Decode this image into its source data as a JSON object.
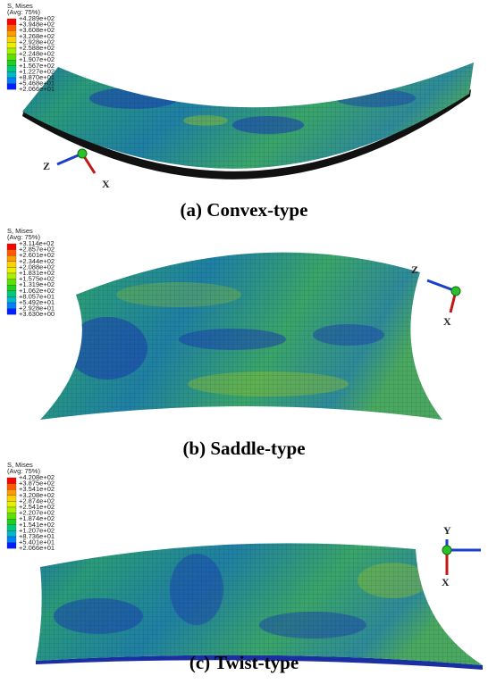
{
  "panels": [
    {
      "legend": {
        "title": "S, Mises",
        "subtitle": "(Avg: 75%)",
        "labels": [
          "+4.289e+02",
          "+3.948e+02",
          "+3.608e+02",
          "+3.268e+02",
          "+2.928e+02",
          "+2.588e+02",
          "+2.248e+02",
          "+1.907e+02",
          "+1.567e+02",
          "+1.227e+02",
          "+8.870e+01",
          "+5.468e+01",
          "+2.066e+01"
        ]
      },
      "axes": [
        "Z",
        "X"
      ],
      "caption": "(a) Convex-type"
    },
    {
      "legend": {
        "title": "S, Mises",
        "subtitle": "(Avg: 75%)",
        "labels": [
          "+3.114e+02",
          "+2.857e+02",
          "+2.601e+02",
          "+2.344e+02",
          "+2.088e+02",
          "+1.831e+02",
          "+1.575e+02",
          "+1.319e+02",
          "+1.062e+02",
          "+8.057e+01",
          "+5.492e+01",
          "+2.928e+01",
          "+3.630e+00"
        ]
      },
      "axes": [
        "Z",
        "X"
      ],
      "caption": "(b) Saddle-type"
    },
    {
      "legend": {
        "title": "S, Mises",
        "subtitle": "(Avg: 75%)",
        "labels": [
          "+4.208e+02",
          "+3.875e+02",
          "+3.541e+02",
          "+3.208e+02",
          "+2.874e+02",
          "+2.541e+02",
          "+2.207e+02",
          "+1.874e+02",
          "+1.541e+02",
          "+1.207e+02",
          "+8.736e+01",
          "+5.401e+01",
          "+2.066e+01"
        ]
      },
      "axes": [
        "Y",
        "X"
      ],
      "caption": "(c) Twist-type"
    }
  ]
}
